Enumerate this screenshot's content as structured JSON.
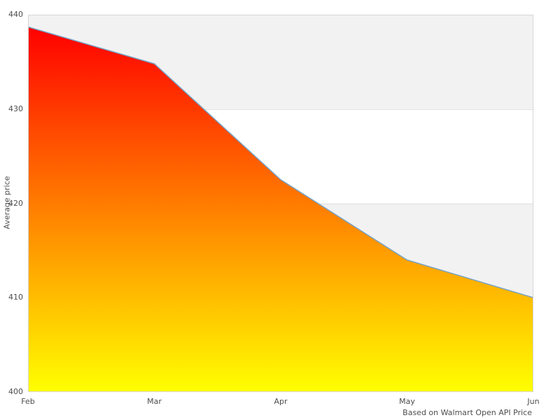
{
  "chart_data": {
    "type": "area",
    "categories": [
      "Feb",
      "Mar",
      "Apr",
      "May",
      "Jun"
    ],
    "series": [
      {
        "name": "Average price",
        "values": [
          438.7,
          434.8,
          422.5,
          414.0,
          410.0
        ]
      }
    ],
    "title": "",
    "xlabel": "",
    "ylabel": "Average price",
    "ylim": [
      400,
      440
    ],
    "y_ticks": [
      400,
      410,
      420,
      430,
      440
    ],
    "caption": "Based on Walmart Open API Price",
    "legend": "none",
    "grid": "alternating horizontal bands every 10 units",
    "colors": {
      "area_gradient_top": "#ff0000",
      "area_gradient_bottom": "#ffff00",
      "line": "#76a2c6",
      "band_gray": "#f2f2f2",
      "band_white": "#ffffff",
      "band_border": "#e0e0e0",
      "plot_border": "#d6d6d6",
      "text": "#4d4d4d"
    }
  }
}
